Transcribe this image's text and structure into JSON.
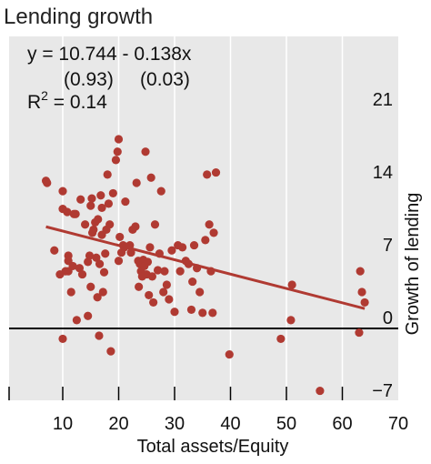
{
  "chart_data": {
    "type": "scatter",
    "title": "Lending growth",
    "xlabel": "Total assets/Equity",
    "ylabel": "Growth of lending",
    "xlim": [
      0,
      70
    ],
    "ylim": [
      -7,
      28
    ],
    "x_ticks": [
      10,
      20,
      30,
      40,
      50,
      60,
      70
    ],
    "y_ticks": [
      21,
      14,
      7,
      0,
      -7
    ],
    "y_axis_side": "right",
    "grid": "x-vertical",
    "annotations": {
      "equation": "y = 10.744 - 0.138x",
      "std_errors": "(0.93)     (0.03)",
      "r2_prefix": "R",
      "r2_sup": "2",
      "r2_suffix": " = 0.14"
    },
    "fit_line": {
      "intercept": 10.744,
      "slope": -0.138,
      "x_range": [
        7,
        64
      ]
    },
    "colors": {
      "points": "#b03a32",
      "line": "#b03a32",
      "background": "#e8e8e8",
      "grid": "#ffffff"
    },
    "points": [
      [
        7.0,
        14.2
      ],
      [
        7.2,
        14.0
      ],
      [
        8.5,
        7.5
      ],
      [
        9.5,
        5.2
      ],
      [
        10.0,
        13.2
      ],
      [
        10.0,
        -1.0
      ],
      [
        10.0,
        11.5
      ],
      [
        10.5,
        5.5
      ],
      [
        10.8,
        11.2
      ],
      [
        11.0,
        6.5
      ],
      [
        11.0,
        5.5
      ],
      [
        11.0,
        7.0
      ],
      [
        11.5,
        3.5
      ],
      [
        11.8,
        6.0
      ],
      [
        12.0,
        11.0
      ],
      [
        12.3,
        11.0
      ],
      [
        12.5,
        0.8
      ],
      [
        13.0,
        5.8
      ],
      [
        13.2,
        12.4
      ],
      [
        13.5,
        5.2
      ],
      [
        14.0,
        10.0
      ],
      [
        14.5,
        1.2
      ],
      [
        14.5,
        6.4
      ],
      [
        14.8,
        7.0
      ],
      [
        15.0,
        4.0
      ],
      [
        15.0,
        11.8
      ],
      [
        15.2,
        12.5
      ],
      [
        15.3,
        9.2
      ],
      [
        15.5,
        9.5
      ],
      [
        15.8,
        10.2
      ],
      [
        16.0,
        6.8
      ],
      [
        16.2,
        3.0
      ],
      [
        16.3,
        10.5
      ],
      [
        16.5,
        -0.7
      ],
      [
        16.6,
        6.2
      ],
      [
        16.8,
        12.8
      ],
      [
        17.0,
        11.6
      ],
      [
        17.0,
        9.0
      ],
      [
        17.2,
        3.5
      ],
      [
        17.4,
        5.4
      ],
      [
        17.6,
        7.2
      ],
      [
        17.8,
        9.5
      ],
      [
        18.0,
        14.8
      ],
      [
        18.2,
        12.0
      ],
      [
        18.4,
        10.0
      ],
      [
        18.6,
        -2.2
      ],
      [
        19.0,
        13.0
      ],
      [
        19.5,
        16.2
      ],
      [
        19.8,
        17.0
      ],
      [
        20.0,
        18.2
      ],
      [
        20.0,
        6.5
      ],
      [
        20.2,
        8.8
      ],
      [
        20.5,
        7.3
      ],
      [
        20.8,
        8.0
      ],
      [
        21.0,
        7.8
      ],
      [
        21.2,
        12.2
      ],
      [
        22.0,
        8.0
      ],
      [
        22.2,
        7.3
      ],
      [
        22.5,
        9.5
      ],
      [
        23.0,
        9.8
      ],
      [
        23.2,
        14.0
      ],
      [
        23.5,
        6.5
      ],
      [
        23.6,
        4.0
      ],
      [
        23.8,
        6.2
      ],
      [
        24.0,
        5.5
      ],
      [
        24.2,
        5.0
      ],
      [
        24.4,
        6.6
      ],
      [
        24.6,
        6.0
      ],
      [
        24.8,
        17.0
      ],
      [
        25.0,
        5.2
      ],
      [
        25.2,
        6.4
      ],
      [
        25.4,
        3.2
      ],
      [
        25.6,
        7.8
      ],
      [
        25.8,
        14.5
      ],
      [
        26.0,
        5.0
      ],
      [
        26.2,
        2.5
      ],
      [
        26.5,
        10.0
      ],
      [
        27.0,
        5.6
      ],
      [
        27.3,
        7.2
      ],
      [
        27.6,
        13.2
      ],
      [
        28.0,
        3.5
      ],
      [
        28.2,
        5.5
      ],
      [
        28.6,
        4.2
      ],
      [
        29.0,
        2.8
      ],
      [
        29.5,
        7.5
      ],
      [
        30.0,
        1.6
      ],
      [
        30.6,
        8.0
      ],
      [
        31.0,
        5.5
      ],
      [
        31.4,
        7.8
      ],
      [
        32.0,
        6.5
      ],
      [
        32.5,
        6.2
      ],
      [
        33.0,
        1.8
      ],
      [
        33.2,
        4.5
      ],
      [
        33.5,
        8.0
      ],
      [
        34.0,
        5.8
      ],
      [
        34.5,
        3.5
      ],
      [
        35.0,
        1.5
      ],
      [
        35.5,
        8.5
      ],
      [
        35.8,
        14.8
      ],
      [
        36.2,
        10.0
      ],
      [
        36.5,
        5.5
      ],
      [
        36.8,
        1.5
      ],
      [
        37.0,
        9.2
      ],
      [
        37.4,
        15.0
      ],
      [
        39.8,
        -2.5
      ],
      [
        49.0,
        -1.0
      ],
      [
        50.8,
        0.8
      ],
      [
        51.0,
        4.2
      ],
      [
        56.0,
        -6.0
      ],
      [
        63.0,
        -0.4
      ],
      [
        63.2,
        5.5
      ],
      [
        63.5,
        3.5
      ],
      [
        64.0,
        2.5
      ]
    ]
  }
}
